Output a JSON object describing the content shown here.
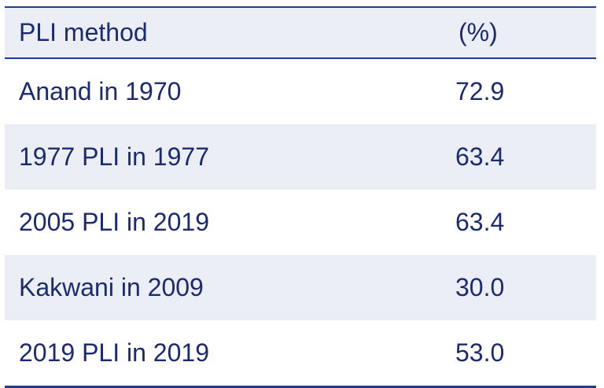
{
  "table": {
    "headers": {
      "method": "PLI method",
      "value": "(%)"
    },
    "rows": [
      {
        "method": "Anand in 1970",
        "value": "72.9"
      },
      {
        "method": "1977 PLI in 1977",
        "value": "63.4"
      },
      {
        "method": "2005 PLI in 2019",
        "value": "63.4"
      },
      {
        "method": "Kakwani in 2009",
        "value": "30.0"
      },
      {
        "method": "2019 PLI in 2019",
        "value": "53.0"
      }
    ]
  },
  "colors": {
    "text": "#1c2b6b",
    "rule": "#1e3f8a",
    "shade": "#eceef5"
  }
}
